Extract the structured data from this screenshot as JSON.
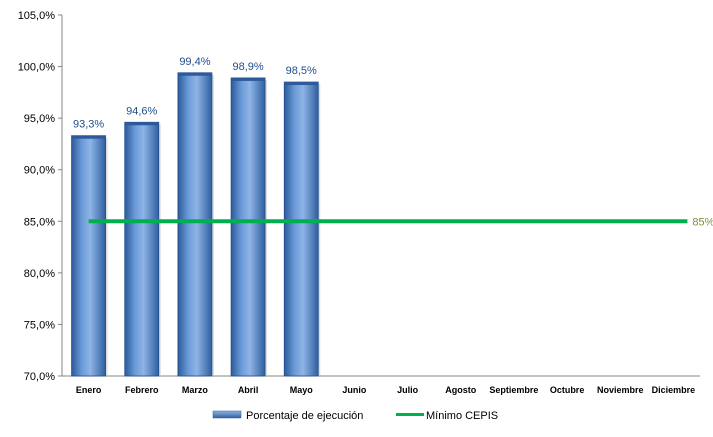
{
  "chart_data": {
    "type": "bar",
    "categories": [
      "Enero",
      "Febrero",
      "Marzo",
      "Abril",
      "Mayo",
      "Junio",
      "Julio",
      "Agosto",
      "Septiembre",
      "Octubre",
      "Noviembre",
      "Diciembre"
    ],
    "y_tick_labels": [
      "70,0%",
      "75,0%",
      "80,0%",
      "85,0%",
      "90,0%",
      "95,0%",
      "100,0%",
      "105,0%"
    ],
    "y_ticks": [
      70,
      75,
      80,
      85,
      90,
      95,
      100,
      105
    ],
    "ylim": [
      70,
      105
    ],
    "series": [
      {
        "name": "Porcentaje de ejecución",
        "type": "bar",
        "values": [
          93.3,
          94.6,
          99.4,
          98.9,
          98.5,
          null,
          null,
          null,
          null,
          null,
          null,
          null
        ],
        "labels": [
          "93,3%",
          "94,6%",
          "99,4%",
          "98,9%",
          "98,5%"
        ],
        "color": "#4f81bd"
      },
      {
        "name": "Mínimo CEPIS",
        "type": "line",
        "values": [
          85,
          85,
          85,
          85,
          85,
          85,
          85,
          85,
          85,
          85,
          85,
          85
        ],
        "end_label": "85%",
        "color": "#00b050",
        "label_color": "#76923c"
      }
    ],
    "legend": "bottom",
    "grid": false
  }
}
